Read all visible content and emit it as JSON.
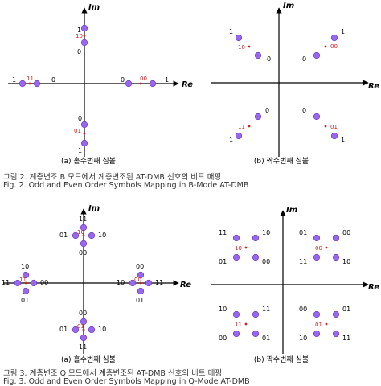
{
  "figure2": {
    "plots": [
      {
        "sublabel": "(a) 홀수번째 심볼",
        "axis_x": "Re",
        "axis_y": "Im",
        "points": [
          {
            "bits": "1",
            "re": 0,
            "im": 2
          },
          {
            "bits": "0",
            "re": 0,
            "im": 1
          },
          {
            "bits": "10",
            "re": 0,
            "im": 1.5,
            "kind": "mid"
          },
          {
            "bits": "1",
            "re": -2,
            "im": 0
          },
          {
            "bits": "0",
            "re": -1,
            "im": 0
          },
          {
            "bits": "11",
            "re": -1.5,
            "im": 0,
            "kind": "mid"
          },
          {
            "bits": "0",
            "re": 1,
            "im": 0
          },
          {
            "bits": "1",
            "re": 2,
            "im": 0
          },
          {
            "bits": "00",
            "re": 1.5,
            "im": 0,
            "kind": "mid"
          },
          {
            "bits": "0",
            "re": 0,
            "im": -1
          },
          {
            "bits": "1",
            "re": 0,
            "im": -2
          },
          {
            "bits": "01",
            "re": 0,
            "im": -1.5,
            "kind": "mid"
          }
        ]
      },
      {
        "sublabel": "(b) 짝수번째 심볼",
        "axis_x": "Re",
        "axis_y": "Im",
        "points": [
          {
            "bits": "1",
            "re": -2,
            "im": 2
          },
          {
            "bits": "0",
            "re": -1,
            "im": 1
          },
          {
            "bits": "10",
            "re": -1.5,
            "im": 1.5,
            "kind": "mid"
          },
          {
            "bits": "0",
            "re": 1,
            "im": 1
          },
          {
            "bits": "1",
            "re": 2,
            "im": 2
          },
          {
            "bits": "00",
            "re": 1.5,
            "im": 1.5,
            "kind": "mid"
          },
          {
            "bits": "1",
            "re": -2,
            "im": -2
          },
          {
            "bits": "0",
            "re": -1,
            "im": -1
          },
          {
            "bits": "11",
            "re": -1.5,
            "im": -1.5,
            "kind": "mid"
          },
          {
            "bits": "0",
            "re": 1,
            "im": -1
          },
          {
            "bits": "1",
            "re": 2,
            "im": -2
          },
          {
            "bits": "01",
            "re": 1.5,
            "im": -1.5,
            "kind": "mid"
          }
        ]
      }
    ],
    "caption_kr": "그림 2. 계층변조 B 모드에서 계층변조된 AT-DMB 신호의 비트 매핑",
    "caption_en": "Fig. 2. Odd and Even Order Symbols Mapping in B-Mode AT-DMB"
  },
  "figure3": {
    "plots": [
      {
        "sublabel": "(a) 홀수번째 심볼",
        "axis_x": "Re",
        "axis_y": "Im"
      },
      {
        "sublabel": "(b) 짝수번째 심볼",
        "axis_x": "Re",
        "axis_y": "Im"
      }
    ],
    "caption_kr": "그림 3. 계층변조 Q 모드에서 계층변조된 AT-DMB 신호의 비트 매핑",
    "caption_en": "Fig. 3. Odd and Even Order Symbols Mapping in Q-Mode AT-DMB"
  },
  "colors": {
    "point": "#9966ee",
    "point_stroke": "#6633bb",
    "bit_label_mid": "#cc2222",
    "axis": "#000000"
  }
}
